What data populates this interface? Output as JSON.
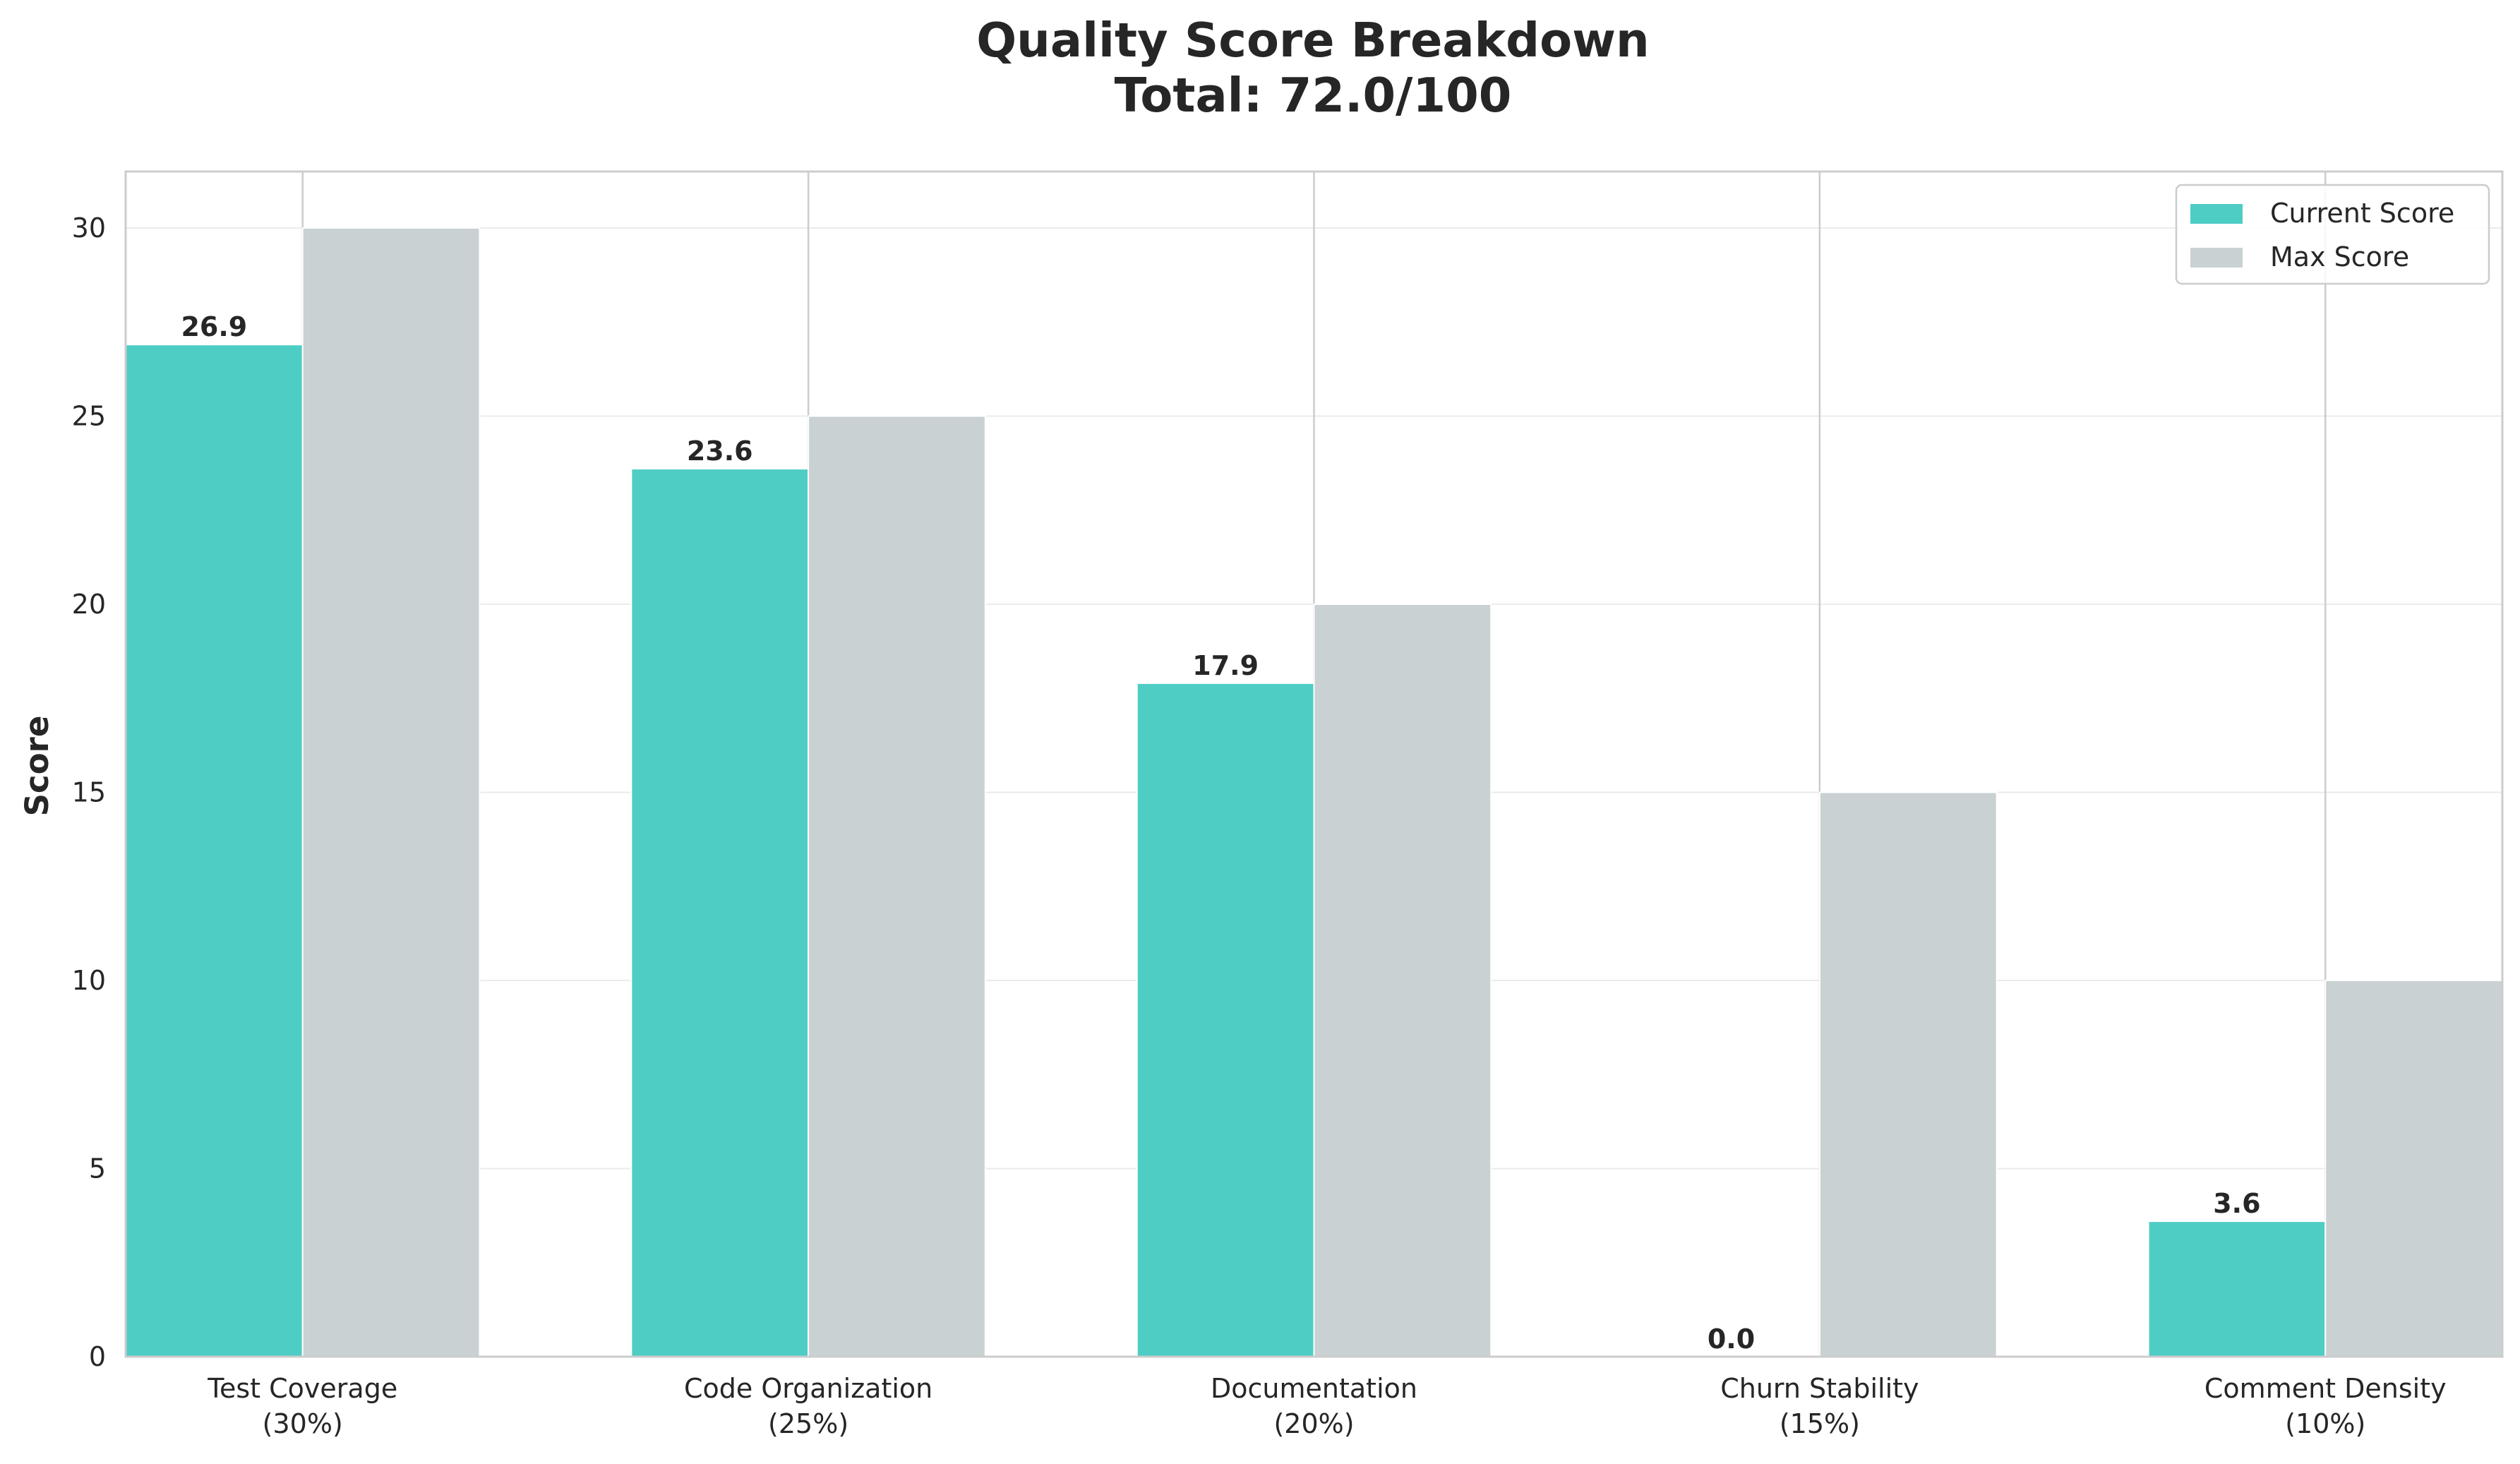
{
  "chart_data": {
    "type": "bar",
    "title": "Quality Score Breakdown",
    "subtitle": "Total: 72.0/100",
    "xlabel": "",
    "ylabel": "Score",
    "ylim": [
      0,
      31.5
    ],
    "yticks": [
      0,
      5,
      10,
      15,
      20,
      25,
      30
    ],
    "categories": [
      [
        "Test Coverage",
        "(30%)"
      ],
      [
        "Code Organization",
        "(25%)"
      ],
      [
        "Documentation",
        "(20%)"
      ],
      [
        "Churn Stability",
        "(15%)"
      ],
      [
        "Comment Density",
        "(10%)"
      ]
    ],
    "series": [
      {
        "name": "Current Score",
        "color": "#4ecdc4",
        "values": [
          26.9,
          23.6,
          17.9,
          0.0,
          3.6
        ],
        "labels": [
          "26.9",
          "23.6",
          "17.9",
          "0.0",
          "3.6"
        ]
      },
      {
        "name": "Max Score",
        "color": "#c9d1d3",
        "values": [
          30,
          25,
          20,
          15,
          10
        ]
      }
    ],
    "grid": true,
    "legend_position": "top-right"
  }
}
